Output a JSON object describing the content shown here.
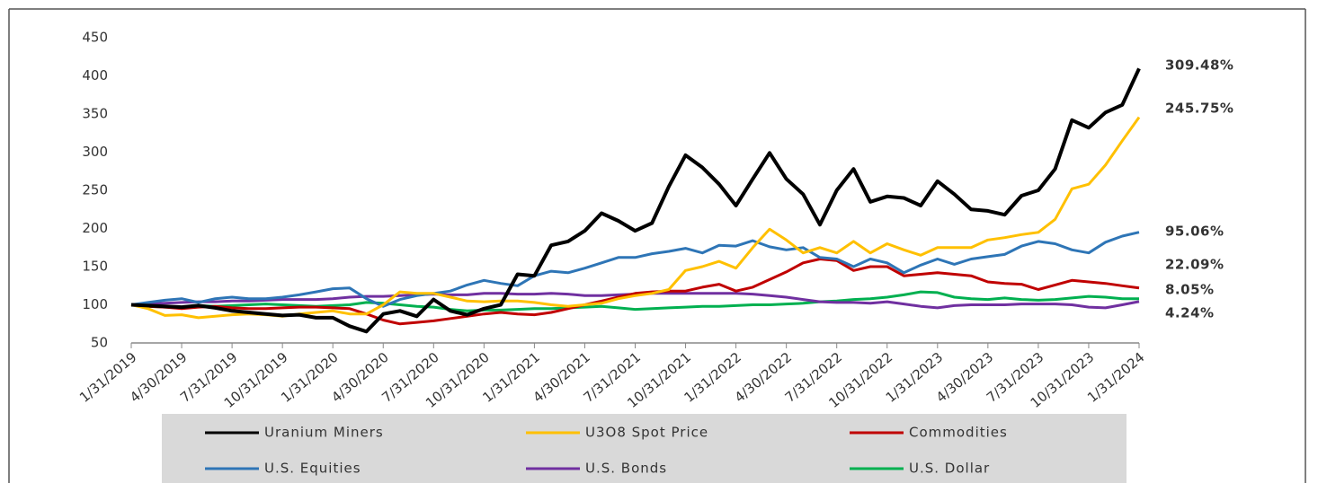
{
  "chart_data": {
    "type": "line",
    "categories": [
      "1/31/2019",
      null,
      null,
      "4/30/2019",
      null,
      null,
      "7/31/2019",
      null,
      null,
      "10/31/2019",
      null,
      null,
      "1/31/2020",
      null,
      null,
      "4/30/2020",
      null,
      null,
      "7/31/2020",
      null,
      null,
      "10/31/2020",
      null,
      null,
      "1/31/2021",
      null,
      null,
      "4/30/2021",
      null,
      null,
      "7/31/2021",
      null,
      null,
      "10/31/2021",
      null,
      null,
      "1/31/2022",
      null,
      null,
      "4/30/2022",
      null,
      null,
      "7/31/2022",
      null,
      null,
      "10/31/2022",
      null,
      null,
      "1/31/2023",
      null,
      null,
      "4/30/2023",
      null,
      null,
      "7/31/2023",
      null,
      null,
      "10/31/2023",
      null,
      null,
      "1/31/2024"
    ],
    "series": [
      {
        "name": "Uranium Miners",
        "color": "#000000",
        "end_label": "309.48%",
        "values": [
          100,
          99,
          98,
          97,
          99,
          96,
          92,
          90,
          88,
          86,
          87,
          83,
          83,
          72,
          65,
          88,
          92,
          85,
          107,
          92,
          87,
          95,
          100,
          140,
          138,
          178,
          183,
          197,
          220,
          210,
          197,
          207,
          255,
          296,
          280,
          258,
          230,
          265,
          299,
          265,
          245,
          205,
          250,
          278,
          235,
          242,
          240,
          230,
          262,
          245,
          225,
          223,
          218,
          243,
          250,
          278,
          342,
          332,
          352,
          362,
          409.48
        ]
      },
      {
        "name": "U3O8 Spot Price",
        "color": "#ffc000",
        "end_label": "245.75%",
        "values": [
          100,
          95,
          86,
          87,
          83,
          85,
          87,
          88,
          87,
          85,
          88,
          90,
          92,
          88,
          88,
          100,
          117,
          115,
          115,
          110,
          105,
          104,
          105,
          105,
          103,
          100,
          98,
          100,
          102,
          108,
          112,
          115,
          120,
          145,
          150,
          157,
          148,
          175,
          199,
          185,
          168,
          175,
          168,
          183,
          168,
          180,
          172,
          165,
          175,
          175,
          175,
          185,
          188,
          192,
          195,
          212,
          252,
          258,
          283,
          315,
          345.75
        ]
      },
      {
        "name": "Commodities",
        "color": "#c00000",
        "end_label": "22.09%",
        "values": [
          100,
          98,
          97,
          95,
          97,
          98,
          96,
          95,
          95,
          96,
          97,
          97,
          96,
          95,
          88,
          80,
          75,
          77,
          79,
          82,
          85,
          88,
          90,
          88,
          87,
          90,
          95,
          100,
          105,
          110,
          115,
          117,
          118,
          118,
          123,
          127,
          118,
          123,
          133,
          143,
          155,
          160,
          158,
          145,
          150,
          150,
          138,
          140,
          142,
          140,
          138,
          130,
          128,
          127,
          120,
          126,
          132,
          130,
          128,
          125,
          122.09
        ]
      },
      {
        "name": "U.S. Equities",
        "color": "#2e75b6",
        "end_label": "95.06%",
        "values": [
          100,
          103,
          106,
          108,
          103,
          108,
          110,
          108,
          108,
          110,
          113,
          117,
          121,
          122,
          108,
          98,
          107,
          112,
          115,
          118,
          126,
          132,
          128,
          125,
          138,
          144,
          142,
          148,
          155,
          162,
          162,
          167,
          170,
          174,
          168,
          178,
          177,
          184,
          176,
          172,
          175,
          162,
          160,
          150,
          160,
          155,
          142,
          152,
          160,
          153,
          160,
          163,
          166,
          177,
          183,
          180,
          172,
          168,
          182,
          190,
          195.06
        ]
      },
      {
        "name": "U.S. Bonds",
        "color": "#7030a0",
        "end_label": "4.24%",
        "values": [
          100,
          101,
          102,
          103,
          104,
          104,
          105,
          105,
          106,
          107,
          107,
          107,
          108,
          110,
          111,
          111,
          112,
          113,
          114,
          113,
          113,
          115,
          115,
          114,
          114,
          115,
          114,
          112,
          112,
          113,
          114,
          115,
          115,
          115,
          115,
          115,
          115,
          114,
          112,
          110,
          107,
          104,
          103,
          103,
          102,
          104,
          101,
          98,
          96,
          99,
          100,
          100,
          100,
          101,
          101,
          101,
          100,
          97,
          96,
          100,
          104.24
        ]
      },
      {
        "name": "U.S. Dollar",
        "color": "#00b050",
        "end_label": "8.05%",
        "values": [
          100,
          98,
          97,
          97,
          99,
          98,
          99,
          100,
          101,
          100,
          99,
          98,
          99,
          100,
          103,
          102,
          100,
          98,
          97,
          94,
          92,
          93,
          93,
          94,
          95,
          95,
          96,
          97,
          98,
          96,
          94,
          95,
          96,
          97,
          98,
          98,
          99,
          100,
          100,
          101,
          102,
          104,
          105,
          107,
          108,
          110,
          113,
          117,
          116,
          110,
          108,
          107,
          109,
          107,
          106,
          107,
          109,
          111,
          110,
          108,
          108.05
        ]
      }
    ],
    "ylim": [
      50,
      450
    ],
    "yticks": [
      50,
      100,
      150,
      200,
      250,
      300,
      350,
      400,
      450
    ],
    "grid": false,
    "legend": "bottom"
  }
}
